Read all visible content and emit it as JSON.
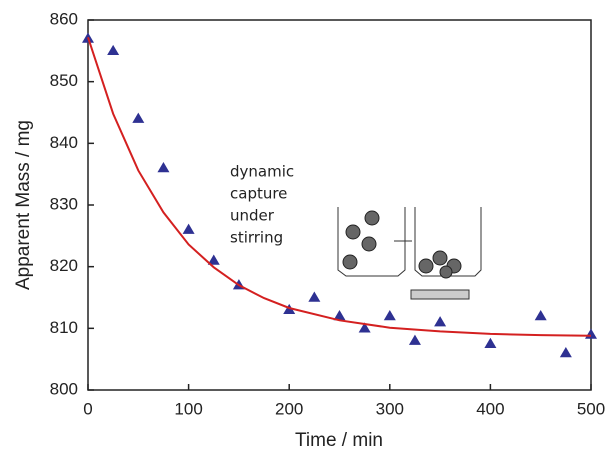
{
  "chart_data": {
    "type": "scatter",
    "xlabel": "Time / min",
    "ylabel": "Apparent Mass / mg",
    "annotation": [
      "dynamic",
      "capture",
      "under",
      "stirring"
    ],
    "xlim": [
      0,
      500
    ],
    "xticks": [
      0,
      100,
      200,
      300,
      400,
      500
    ],
    "ylim": [
      800,
      860
    ],
    "yticks": [
      800,
      810,
      820,
      830,
      840,
      850,
      860
    ],
    "series": [
      {
        "style": "markers",
        "color": "#2e3192",
        "x": [
          0,
          25,
          50,
          75,
          100,
          125,
          150,
          200,
          225,
          250,
          275,
          300,
          325,
          350,
          400,
          450,
          475,
          500
        ],
        "values": [
          857,
          855,
          844,
          836,
          826,
          821,
          817,
          813,
          815,
          812,
          810,
          812,
          808,
          811,
          807.5,
          812,
          806,
          809
        ]
      },
      {
        "style": "line",
        "color": "#d42020",
        "x": [
          0,
          25,
          50,
          75,
          100,
          125,
          150,
          175,
          200,
          250,
          300,
          350,
          400,
          450,
          500
        ],
        "values": [
          857.2,
          844.8,
          835.6,
          828.8,
          823.6,
          819.9,
          817.0,
          814.9,
          813.3,
          811.3,
          810.1,
          809.5,
          809.1,
          808.9,
          808.8
        ]
      }
    ]
  }
}
